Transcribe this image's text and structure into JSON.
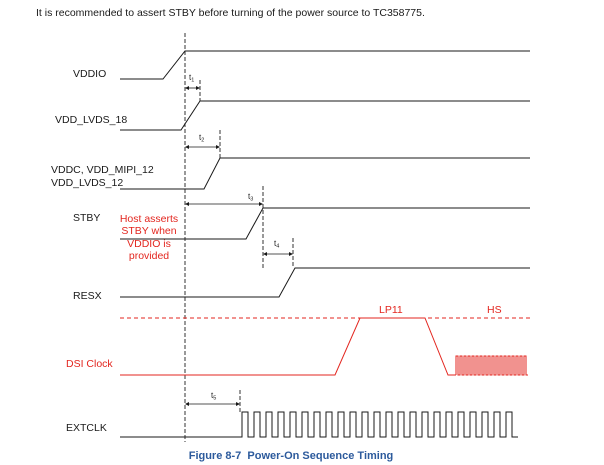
{
  "note": "It is recommended to assert STBY before turning of the power source to TC358775.",
  "signals": {
    "vddio": "VDDIO",
    "vdd_lvds_18": "VDD_LVDS_18",
    "vddc_mipi": "VDDC, VDD_MIPI_12",
    "vdd_lvds_12": "VDD_LVDS_12",
    "stby": "STBY",
    "resx": "RESX",
    "dsi_clock": "DSI Clock",
    "extclk": "EXTCLK"
  },
  "host_note": [
    "Host asserts",
    "STBY when",
    "VDDIO is",
    "provided"
  ],
  "dsi_states": {
    "lp11": "LP11",
    "hs": "HS"
  },
  "timings": [
    {
      "symbol": "t",
      "index": "1"
    },
    {
      "symbol": "t",
      "index": "2"
    },
    {
      "symbol": "t",
      "index": "3"
    },
    {
      "symbol": "t",
      "index": "4"
    },
    {
      "symbol": "t",
      "index": "5"
    }
  ],
  "caption": "Figure 8-7  Power-On Sequence Timing",
  "colors": {
    "signal": "#1a1a1a",
    "dsi": "#e3261f",
    "caption": "#2c5a9c",
    "guide": "#333333"
  }
}
